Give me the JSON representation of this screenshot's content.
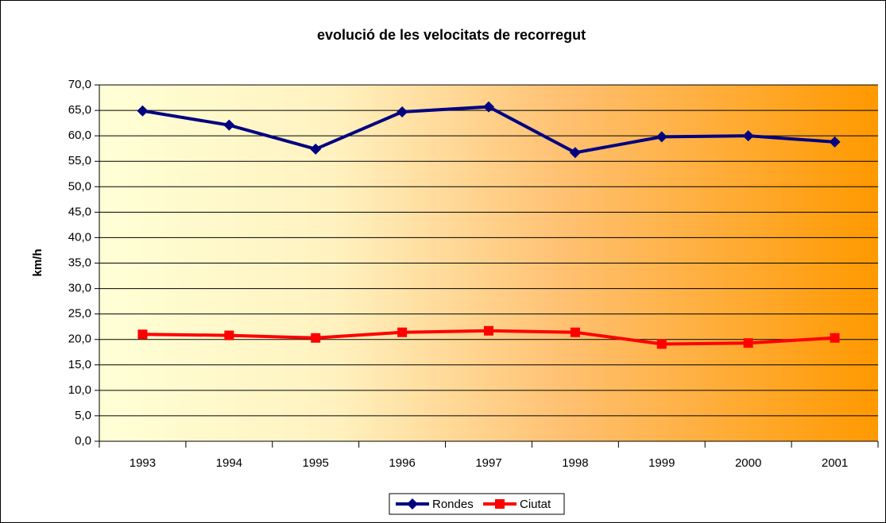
{
  "chart_data": {
    "type": "line",
    "title": "evolució de les velocitats de recorregut",
    "y_label": "km/h",
    "categories": [
      "1993",
      "1994",
      "1995",
      "1996",
      "1997",
      "1998",
      "1999",
      "2000",
      "2001"
    ],
    "series": [
      {
        "name": "Rondes",
        "color": "#000080",
        "marker": "diamond",
        "values": [
          64.9,
          62.1,
          57.4,
          64.7,
          65.7,
          56.7,
          59.8,
          60.0,
          58.8
        ]
      },
      {
        "name": "Ciutat",
        "color": "#ff0000",
        "marker": "square",
        "values": [
          21.0,
          20.8,
          20.3,
          21.4,
          21.7,
          21.4,
          19.1,
          19.3,
          20.3
        ]
      }
    ],
    "ylim": [
      0,
      70
    ],
    "yticks": [
      {
        "value": 0,
        "label": "0,0"
      },
      {
        "value": 5,
        "label": "5,0"
      },
      {
        "value": 10,
        "label": "10,0"
      },
      {
        "value": 15,
        "label": "15,0"
      },
      {
        "value": 20,
        "label": "20,0"
      },
      {
        "value": 25,
        "label": "25,0"
      },
      {
        "value": 30,
        "label": "30,0"
      },
      {
        "value": 35,
        "label": "35,0"
      },
      {
        "value": 40,
        "label": "40,0"
      },
      {
        "value": 45,
        "label": "45,0"
      },
      {
        "value": 50,
        "label": "50,0"
      },
      {
        "value": 55,
        "label": "55,0"
      },
      {
        "value": 60,
        "label": "60,0"
      },
      {
        "value": 65,
        "label": "65,0"
      },
      {
        "value": 70,
        "label": "70,0"
      }
    ],
    "grid": true,
    "legend": "bottom"
  }
}
